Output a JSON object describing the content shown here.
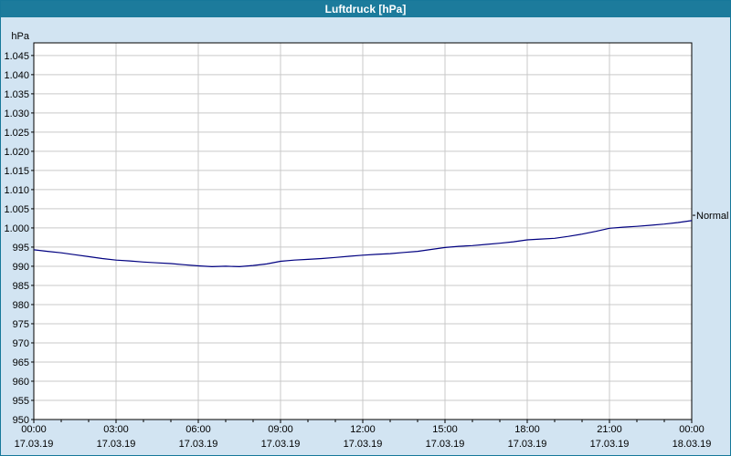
{
  "window": {
    "title": "Luftdruck [hPa]"
  },
  "chart_data": {
    "type": "line",
    "title": "Luftdruck [hPa]",
    "ylabel": "hPa",
    "ylim": [
      950,
      1048.3
    ],
    "yticks": [
      1045,
      1040,
      1035,
      1030,
      1025,
      1020,
      1015,
      1010,
      1005,
      1000,
      995,
      990,
      985,
      980,
      975,
      970,
      965,
      960,
      955,
      950
    ],
    "ytick_labels": [
      "1.045",
      "1.040",
      "1.035",
      "1.030",
      "1.025",
      "1.020",
      "1.015",
      "1.010",
      "1.005",
      "1.000",
      "995",
      "990",
      "985",
      "980",
      "975",
      "970",
      "965",
      "960",
      "955",
      "950"
    ],
    "x_range_hours": [
      0,
      24
    ],
    "x_major_step_hours": 3,
    "x_minor_step_hours": 1,
    "xtick_times": [
      "00:00",
      "03:00",
      "06:00",
      "09:00",
      "12:00",
      "15:00",
      "18:00",
      "21:00",
      "00:00"
    ],
    "xtick_dates": [
      "17.03.19",
      "17.03.19",
      "17.03.19",
      "17.03.19",
      "17.03.19",
      "17.03.19",
      "17.03.19",
      "17.03.19",
      "18.03.19"
    ],
    "series": [
      {
        "name": "Luftdruck",
        "color": "#000080",
        "x_start": 0,
        "x_step": 0.5,
        "values": [
          994.3,
          993.9,
          993.5,
          993.0,
          992.5,
          992.0,
          991.6,
          991.4,
          991.1,
          990.9,
          990.7,
          990.4,
          990.1,
          989.9,
          990.0,
          989.9,
          990.2,
          990.6,
          991.3,
          991.6,
          991.8,
          992.0,
          992.3,
          992.6,
          992.9,
          993.1,
          993.3,
          993.6,
          993.9,
          994.4,
          994.9,
          995.2,
          995.4,
          995.7,
          996.0,
          996.4,
          996.9,
          997.1,
          997.3,
          997.8,
          998.4,
          999.1,
          999.9,
          1000.2,
          1000.4,
          1000.7,
          1001.0,
          1001.4,
          1001.9
        ]
      }
    ],
    "annotations": [
      {
        "label": "Normal",
        "value": 1003.3
      }
    ],
    "legend_position": "none",
    "grid": true,
    "colors": {
      "line": "#000080",
      "grid": "#c9c9c9",
      "plot_bg": "#ffffff",
      "window_bg": "#d2e4f2",
      "titlebar_bg": "#1c7b9c",
      "axis": "#000000"
    }
  }
}
